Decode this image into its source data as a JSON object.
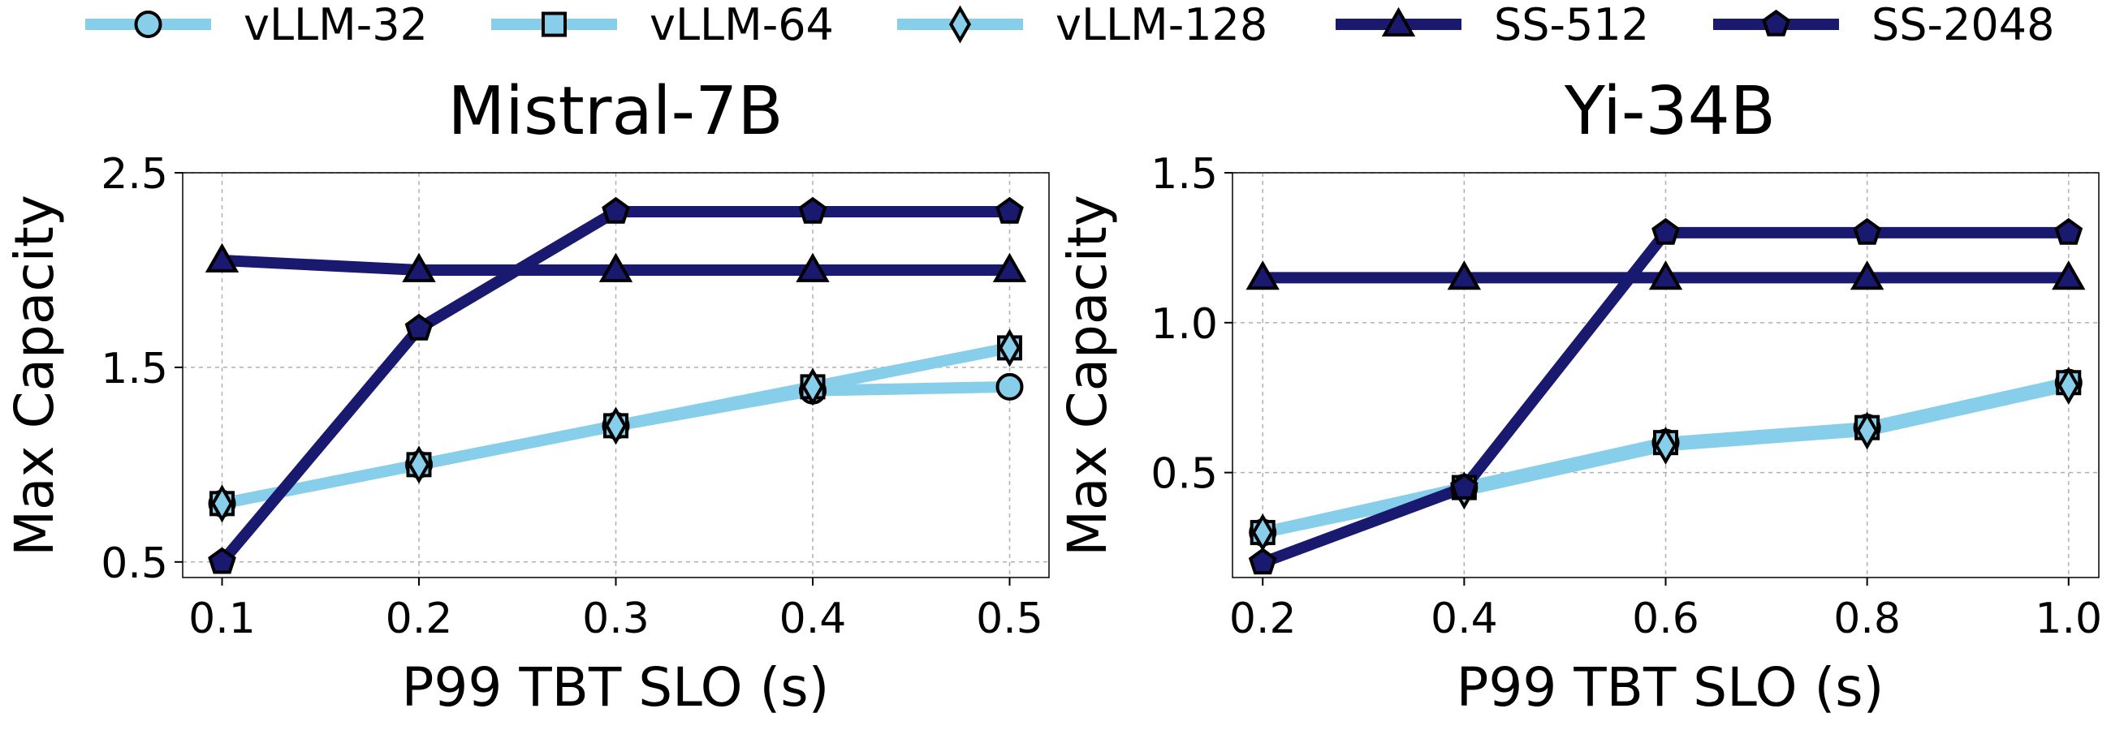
{
  "colors": {
    "vllm": "#87CEEB",
    "ss": "#191970",
    "marker_edge": "#000000"
  },
  "legend": [
    {
      "name": "vLLM-32",
      "marker": "circle",
      "color": "#87CEEB"
    },
    {
      "name": "vLLM-64",
      "marker": "square",
      "color": "#87CEEB"
    },
    {
      "name": "vLLM-128",
      "marker": "diamond",
      "color": "#87CEEB"
    },
    {
      "name": "SS-512",
      "marker": "triangle",
      "color": "#191970"
    },
    {
      "name": "SS-2048",
      "marker": "pentagon",
      "color": "#191970"
    }
  ],
  "chart_data": [
    {
      "type": "line",
      "title": "Mistral-7B",
      "xlabel": "P99 TBT SLO (s)",
      "ylabel": "Max Capacity",
      "x": [
        0.1,
        0.2,
        0.3,
        0.4,
        0.5
      ],
      "xticks": [
        "0.1",
        "0.2",
        "0.3",
        "0.4",
        "0.5"
      ],
      "xlim": [
        0.08,
        0.52
      ],
      "yticks": [
        "0.5",
        "1.5",
        "2.5"
      ],
      "ytick_values": [
        0.5,
        1.5,
        2.5
      ],
      "ylim": [
        0.42,
        2.5
      ],
      "grid": true,
      "series": [
        {
          "name": "vLLM-32",
          "marker": "circle",
          "color": "#87CEEB",
          "values": [
            0.8,
            1.0,
            1.2,
            1.38,
            1.4
          ]
        },
        {
          "name": "vLLM-64",
          "marker": "square",
          "color": "#87CEEB",
          "values": [
            0.8,
            1.0,
            1.2,
            1.4,
            1.6
          ]
        },
        {
          "name": "vLLM-128",
          "marker": "diamond",
          "color": "#87CEEB",
          "values": [
            0.8,
            1.0,
            1.2,
            1.4,
            1.6
          ]
        },
        {
          "name": "SS-512",
          "marker": "triangle",
          "color": "#191970",
          "values": [
            2.05,
            2.0,
            2.0,
            2.0,
            2.0
          ]
        },
        {
          "name": "SS-2048",
          "marker": "pentagon",
          "color": "#191970",
          "values": [
            0.5,
            1.7,
            2.3,
            2.3,
            2.3
          ]
        }
      ]
    },
    {
      "type": "line",
      "title": "Yi-34B",
      "xlabel": "P99 TBT SLO (s)",
      "ylabel": "Max Capacity",
      "x": [
        0.2,
        0.4,
        0.6,
        0.8,
        1.0
      ],
      "xticks": [
        "0.2",
        "0.4",
        "0.6",
        "0.8",
        "1.0"
      ],
      "xlim": [
        0.17,
        1.03
      ],
      "yticks": [
        "0.5",
        "1.0",
        "1.5"
      ],
      "ytick_values": [
        0.5,
        1.0,
        1.5
      ],
      "ylim": [
        0.15,
        1.5
      ],
      "grid": true,
      "series": [
        {
          "name": "vLLM-32",
          "marker": "circle",
          "color": "#87CEEB",
          "values": [
            0.3,
            0.45,
            0.6,
            0.65,
            0.8
          ]
        },
        {
          "name": "vLLM-64",
          "marker": "square",
          "color": "#87CEEB",
          "values": [
            0.3,
            0.45,
            0.6,
            0.65,
            0.8
          ]
        },
        {
          "name": "vLLM-128",
          "marker": "diamond",
          "color": "#87CEEB",
          "values": [
            0.3,
            0.44,
            0.59,
            0.64,
            0.79
          ]
        },
        {
          "name": "SS-512",
          "marker": "triangle",
          "color": "#191970",
          "values": [
            1.15,
            1.15,
            1.15,
            1.15,
            1.15
          ]
        },
        {
          "name": "SS-2048",
          "marker": "pentagon",
          "color": "#191970",
          "values": [
            0.2,
            0.45,
            1.3,
            1.3,
            1.3
          ]
        }
      ]
    }
  ]
}
